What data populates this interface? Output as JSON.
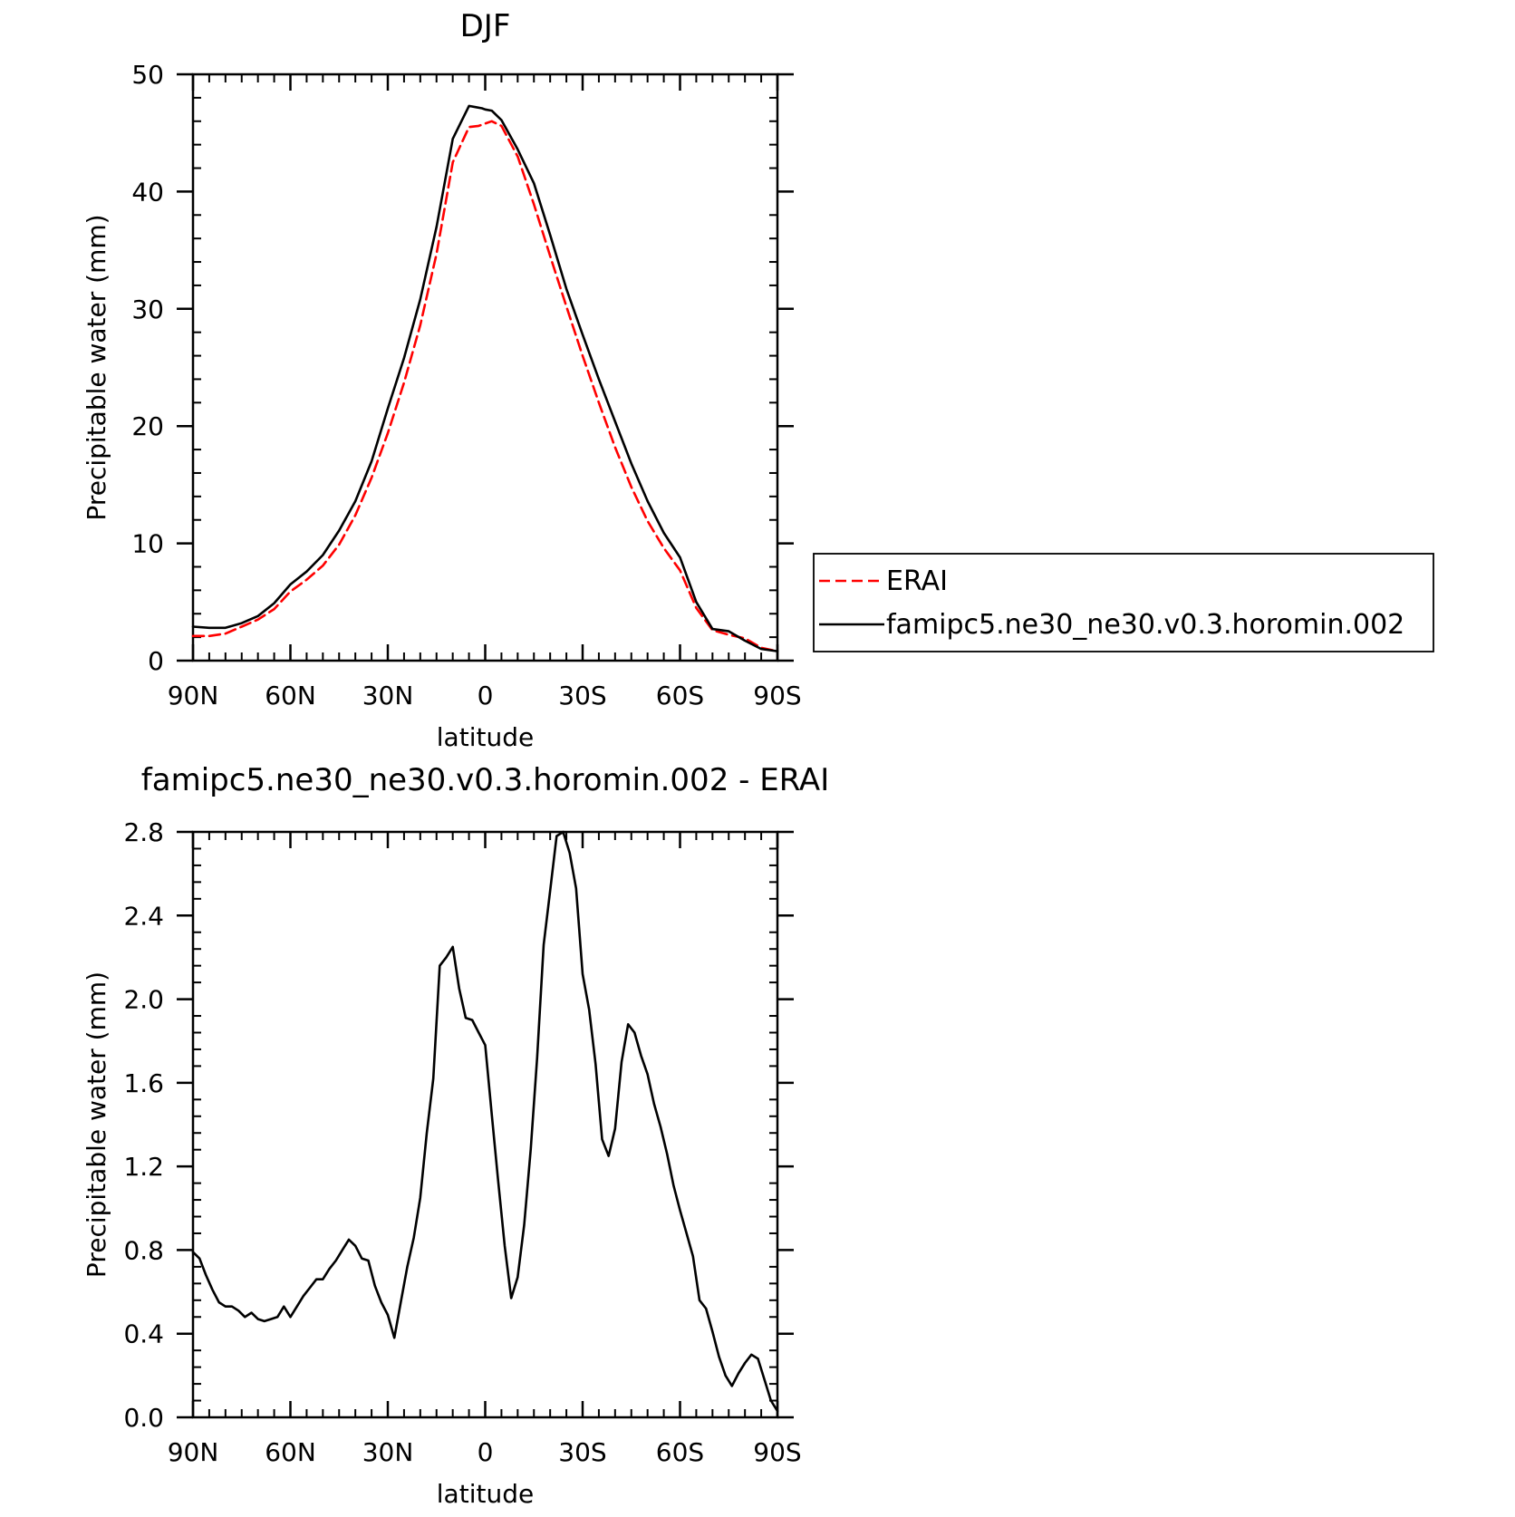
{
  "chart_data": [
    {
      "type": "line",
      "title": "DJF",
      "xlabel": "latitude",
      "ylabel": "Precipitable water (mm)",
      "xlim": [
        90,
        -90
      ],
      "ylim": [
        0,
        50
      ],
      "x_ticks": [
        90,
        60,
        30,
        0,
        -30,
        -60,
        -90
      ],
      "x_tick_labels": [
        "90N",
        "60N",
        "30N",
        "0",
        "30S",
        "60S",
        "90S"
      ],
      "y_ticks": [
        0,
        10,
        20,
        30,
        40,
        50
      ],
      "y_tick_labels": [
        "0",
        "10",
        "20",
        "30",
        "40",
        "50"
      ],
      "grid": false,
      "legend": "right",
      "series": [
        {
          "name": "ERAI",
          "color": "#ff0000",
          "style": "dashed",
          "x": [
            90,
            85,
            80,
            75,
            70,
            65,
            60,
            55,
            50,
            45,
            40,
            35,
            30,
            25,
            20,
            15,
            10,
            5,
            2,
            0,
            -2,
            -5,
            -10,
            -15,
            -20,
            -25,
            -30,
            -35,
            -40,
            -45,
            -50,
            -55,
            -60,
            -65,
            -70,
            -75,
            -80,
            -85,
            -90
          ],
          "values": [
            2.1,
            2.1,
            2.3,
            2.9,
            3.5,
            4.4,
            5.9,
            6.9,
            8.1,
            9.9,
            12.4,
            15.6,
            19.4,
            23.7,
            28.6,
            34.7,
            42.5,
            45.5,
            45.6,
            45.8,
            46.0,
            45.6,
            43.0,
            38.9,
            34.5,
            30.2,
            26.0,
            22.0,
            18.2,
            14.8,
            11.9,
            9.6,
            7.7,
            4.5,
            2.6,
            2.2,
            1.9,
            1.1,
            0.8
          ]
        },
        {
          "name": "famipc5.ne30_ne30.v0.3.horomin.002",
          "color": "#000000",
          "style": "solid",
          "x": [
            90,
            85,
            80,
            75,
            70,
            65,
            60,
            55,
            50,
            45,
            40,
            35,
            30,
            25,
            20,
            15,
            10,
            5,
            3,
            1,
            0,
            -2,
            -5,
            -10,
            -15,
            -20,
            -25,
            -30,
            -35,
            -40,
            -45,
            -50,
            -55,
            -60,
            -65,
            -70,
            -75,
            -80,
            -85,
            -90
          ],
          "values": [
            2.9,
            2.8,
            2.8,
            3.2,
            3.8,
            4.9,
            6.5,
            7.6,
            9.0,
            11.1,
            13.6,
            17.0,
            21.5,
            25.8,
            30.8,
            37.0,
            44.5,
            47.3,
            47.2,
            47.1,
            47.0,
            46.9,
            46.1,
            43.6,
            40.7,
            36.3,
            31.7,
            27.8,
            24.0,
            20.4,
            16.8,
            13.6,
            10.9,
            8.8,
            5.0,
            2.7,
            2.5,
            1.7,
            1.0,
            0.8
          ]
        }
      ]
    },
    {
      "type": "line",
      "title": "famipc5.ne30_ne30.v0.3.horomin.002 - ERAI",
      "xlabel": "latitude",
      "ylabel": "Precipitable water (mm)",
      "xlim": [
        90,
        -90
      ],
      "ylim": [
        0,
        2.8
      ],
      "x_ticks": [
        90,
        60,
        30,
        0,
        -30,
        -60,
        -90
      ],
      "x_tick_labels": [
        "90N",
        "60N",
        "30N",
        "0",
        "30S",
        "60S",
        "90S"
      ],
      "y_ticks": [
        0,
        0.4,
        0.8,
        1.2,
        1.6,
        2.0,
        2.4,
        2.8
      ],
      "y_tick_labels": [
        "0.0",
        "0.4",
        "0.8",
        "1.2",
        "1.6",
        "2.0",
        "2.4",
        "2.8"
      ],
      "grid": false,
      "series": [
        {
          "color": "#000000",
          "style": "solid",
          "x": [
            90,
            88,
            86,
            84,
            82,
            80,
            78,
            76,
            74,
            72,
            70,
            68,
            66,
            64,
            62,
            60,
            58,
            56,
            54,
            52,
            50,
            48,
            46,
            44,
            42,
            40,
            38,
            36,
            34,
            32,
            30,
            28,
            26,
            24,
            22,
            20,
            18,
            16,
            14,
            12,
            10,
            8,
            6,
            4,
            2,
            0,
            -2,
            -4,
            -6,
            -8,
            -10,
            -12,
            -14,
            -16,
            -18,
            -20,
            -22,
            -24,
            -26,
            -28,
            -30,
            -32,
            -34,
            -36,
            -38,
            -40,
            -42,
            -44,
            -46,
            -48,
            -50,
            -52,
            -54,
            -56,
            -58,
            -60,
            -62,
            -64,
            -66,
            -68,
            -70,
            -72,
            -74,
            -76,
            -78,
            -80,
            -82,
            -84,
            -86,
            -88,
            -90
          ],
          "values": [
            0.79,
            0.76,
            0.68,
            0.61,
            0.55,
            0.53,
            0.53,
            0.51,
            0.48,
            0.5,
            0.47,
            0.46,
            0.47,
            0.48,
            0.53,
            0.48,
            0.53,
            0.58,
            0.62,
            0.66,
            0.66,
            0.71,
            0.75,
            0.8,
            0.85,
            0.82,
            0.76,
            0.75,
            0.63,
            0.55,
            0.49,
            0.38,
            0.55,
            0.72,
            0.86,
            1.05,
            1.36,
            1.62,
            2.16,
            2.2,
            2.25,
            2.05,
            1.91,
            1.9,
            1.84,
            1.78,
            1.45,
            1.13,
            0.82,
            0.57,
            0.67,
            0.92,
            1.28,
            1.72,
            2.26,
            2.52,
            2.78,
            2.8,
            2.7,
            2.53,
            2.12,
            1.95,
            1.69,
            1.33,
            1.25,
            1.38,
            1.7,
            1.88,
            1.84,
            1.73,
            1.64,
            1.5,
            1.39,
            1.26,
            1.11,
            0.99,
            0.88,
            0.77,
            0.56,
            0.52,
            0.41,
            0.29,
            0.2,
            0.15,
            0.21,
            0.26,
            0.3,
            0.28,
            0.18,
            0.08,
            0.03
          ]
        }
      ]
    }
  ]
}
